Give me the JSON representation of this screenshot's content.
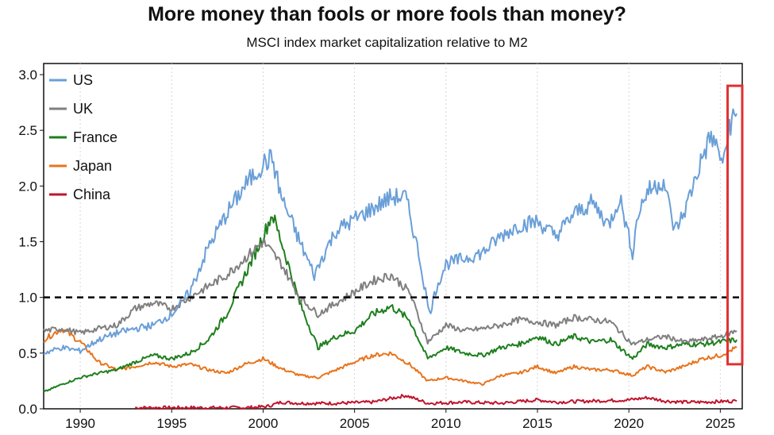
{
  "title": "More money than fools or more fools than money?",
  "subtitle": "MSCI index market capitalization relative to M2",
  "colors": {
    "US": "#6a9fd8",
    "UK": "#7f7f7f",
    "France": "#1e7f1e",
    "Japan": "#e8741c",
    "China": "#c0142c",
    "reference": "#000000",
    "highlight": "#e03030"
  },
  "chart_data": {
    "type": "line",
    "title": "More money than fools or more fools than money?",
    "subtitle": "MSCI index market capitalization relative to M2",
    "xlabel": "",
    "ylabel": "",
    "xlim": [
      1988,
      2026.2
    ],
    "ylim": [
      0,
      3.1
    ],
    "x_ticks": [
      "1990",
      "1995",
      "2000",
      "2005",
      "2010",
      "2015",
      "2020",
      "2025"
    ],
    "y_ticks": [
      "0.0",
      "0.5",
      "1.0",
      "1.5",
      "2.0",
      "2.5",
      "3.0"
    ],
    "grid": "vertical dotted",
    "legend": "top-left",
    "reference_line": {
      "y": 1.0,
      "style": "dashed"
    },
    "highlight_box": {
      "x": [
        2025.4,
        2026.2
      ],
      "y": [
        0.4,
        2.9
      ]
    },
    "series": [
      {
        "name": "US",
        "points": [
          [
            1988,
            0.5
          ],
          [
            1989,
            0.55
          ],
          [
            1990,
            0.52
          ],
          [
            1991,
            0.62
          ],
          [
            1992,
            0.68
          ],
          [
            1993,
            0.72
          ],
          [
            1994,
            0.75
          ],
          [
            1995,
            0.85
          ],
          [
            1996,
            1.05
          ],
          [
            1997,
            1.45
          ],
          [
            1998,
            1.75
          ],
          [
            1999,
            2.0
          ],
          [
            2000,
            2.2
          ],
          [
            2000.5,
            2.25
          ],
          [
            2001,
            1.9
          ],
          [
            2002,
            1.5
          ],
          [
            2002.8,
            1.2
          ],
          [
            2003.5,
            1.45
          ],
          [
            2004,
            1.6
          ],
          [
            2005,
            1.7
          ],
          [
            2006,
            1.8
          ],
          [
            2007,
            1.9
          ],
          [
            2007.8,
            1.9
          ],
          [
            2008.5,
            1.4
          ],
          [
            2009.1,
            0.85
          ],
          [
            2009.5,
            1.1
          ],
          [
            2010,
            1.3
          ],
          [
            2011,
            1.35
          ],
          [
            2012,
            1.4
          ],
          [
            2013,
            1.55
          ],
          [
            2014,
            1.65
          ],
          [
            2015,
            1.68
          ],
          [
            2016,
            1.55
          ],
          [
            2017,
            1.75
          ],
          [
            2018,
            1.85
          ],
          [
            2018.9,
            1.65
          ],
          [
            2019.5,
            1.9
          ],
          [
            2020.2,
            1.4
          ],
          [
            2020.5,
            1.75
          ],
          [
            2021,
            1.95
          ],
          [
            2021.9,
            2.05
          ],
          [
            2022.5,
            1.6
          ],
          [
            2023,
            1.75
          ],
          [
            2024,
            2.25
          ],
          [
            2024.5,
            2.45
          ],
          [
            2025.2,
            2.2
          ],
          [
            2025.5,
            2.55
          ],
          [
            2025.9,
            2.65
          ]
        ]
      },
      {
        "name": "UK",
        "points": [
          [
            1988,
            0.7
          ],
          [
            1989,
            0.72
          ],
          [
            1990,
            0.68
          ],
          [
            1991,
            0.72
          ],
          [
            1992,
            0.75
          ],
          [
            1993,
            0.9
          ],
          [
            1994,
            0.95
          ],
          [
            1995,
            0.9
          ],
          [
            1996,
            1.0
          ],
          [
            1997,
            1.1
          ],
          [
            1998,
            1.2
          ],
          [
            1999,
            1.35
          ],
          [
            2000,
            1.5
          ],
          [
            2001,
            1.3
          ],
          [
            2002,
            1.0
          ],
          [
            2003,
            0.85
          ],
          [
            2004,
            0.95
          ],
          [
            2005,
            1.05
          ],
          [
            2006,
            1.15
          ],
          [
            2007,
            1.2
          ],
          [
            2008,
            1.05
          ],
          [
            2009,
            0.6
          ],
          [
            2010,
            0.75
          ],
          [
            2011,
            0.7
          ],
          [
            2012,
            0.72
          ],
          [
            2013,
            0.75
          ],
          [
            2014,
            0.8
          ],
          [
            2015,
            0.78
          ],
          [
            2016,
            0.75
          ],
          [
            2017,
            0.82
          ],
          [
            2018,
            0.8
          ],
          [
            2019,
            0.78
          ],
          [
            2020.2,
            0.58
          ],
          [
            2021,
            0.62
          ],
          [
            2022,
            0.65
          ],
          [
            2023,
            0.6
          ],
          [
            2024,
            0.62
          ],
          [
            2025,
            0.65
          ],
          [
            2025.9,
            0.7
          ]
        ]
      },
      {
        "name": "France",
        "points": [
          [
            1988,
            0.15
          ],
          [
            1989,
            0.22
          ],
          [
            1990,
            0.28
          ],
          [
            1991,
            0.32
          ],
          [
            1992,
            0.35
          ],
          [
            1993,
            0.42
          ],
          [
            1994,
            0.48
          ],
          [
            1995,
            0.45
          ],
          [
            1996,
            0.5
          ],
          [
            1997,
            0.62
          ],
          [
            1998,
            0.85
          ],
          [
            1999,
            1.2
          ],
          [
            2000,
            1.55
          ],
          [
            2000.5,
            1.75
          ],
          [
            2001,
            1.5
          ],
          [
            2002,
            0.95
          ],
          [
            2003,
            0.55
          ],
          [
            2004,
            0.65
          ],
          [
            2005,
            0.7
          ],
          [
            2006,
            0.85
          ],
          [
            2007,
            0.92
          ],
          [
            2008,
            0.8
          ],
          [
            2009,
            0.45
          ],
          [
            2010,
            0.55
          ],
          [
            2011,
            0.5
          ],
          [
            2012,
            0.48
          ],
          [
            2013,
            0.55
          ],
          [
            2014,
            0.58
          ],
          [
            2015,
            0.65
          ],
          [
            2016,
            0.58
          ],
          [
            2017,
            0.65
          ],
          [
            2018,
            0.6
          ],
          [
            2019,
            0.62
          ],
          [
            2020.2,
            0.45
          ],
          [
            2021,
            0.58
          ],
          [
            2022,
            0.55
          ],
          [
            2023,
            0.58
          ],
          [
            2024,
            0.58
          ],
          [
            2025,
            0.6
          ],
          [
            2025.9,
            0.62
          ]
        ]
      },
      {
        "name": "Japan",
        "points": [
          [
            1988,
            0.62
          ],
          [
            1989,
            0.72
          ],
          [
            1990,
            0.6
          ],
          [
            1991,
            0.42
          ],
          [
            1992,
            0.35
          ],
          [
            1993,
            0.38
          ],
          [
            1994,
            0.42
          ],
          [
            1995,
            0.38
          ],
          [
            1996,
            0.4
          ],
          [
            1997,
            0.35
          ],
          [
            1998,
            0.32
          ],
          [
            1999,
            0.4
          ],
          [
            2000,
            0.45
          ],
          [
            2001,
            0.36
          ],
          [
            2002,
            0.3
          ],
          [
            2003,
            0.28
          ],
          [
            2004,
            0.35
          ],
          [
            2005,
            0.42
          ],
          [
            2006,
            0.48
          ],
          [
            2007,
            0.5
          ],
          [
            2008,
            0.4
          ],
          [
            2009,
            0.25
          ],
          [
            2010,
            0.28
          ],
          [
            2011,
            0.25
          ],
          [
            2012,
            0.22
          ],
          [
            2013,
            0.3
          ],
          [
            2014,
            0.32
          ],
          [
            2015,
            0.38
          ],
          [
            2016,
            0.32
          ],
          [
            2017,
            0.38
          ],
          [
            2018,
            0.35
          ],
          [
            2019,
            0.35
          ],
          [
            2020.2,
            0.3
          ],
          [
            2021,
            0.38
          ],
          [
            2022,
            0.33
          ],
          [
            2023,
            0.38
          ],
          [
            2024,
            0.45
          ],
          [
            2025,
            0.48
          ],
          [
            2025.9,
            0.55
          ]
        ]
      },
      {
        "name": "China",
        "points": [
          [
            1993,
            0.01
          ],
          [
            1996,
            0.01
          ],
          [
            1999,
            0.01
          ],
          [
            2000.2,
            0.02
          ],
          [
            2001,
            0.06
          ],
          [
            2002,
            0.05
          ],
          [
            2004,
            0.05
          ],
          [
            2006,
            0.06
          ],
          [
            2007.8,
            0.12
          ],
          [
            2008.5,
            0.08
          ],
          [
            2009,
            0.05
          ],
          [
            2011,
            0.06
          ],
          [
            2013,
            0.05
          ],
          [
            2015,
            0.08
          ],
          [
            2016,
            0.06
          ],
          [
            2018,
            0.07
          ],
          [
            2020,
            0.08
          ],
          [
            2021,
            0.1
          ],
          [
            2022,
            0.07
          ],
          [
            2023,
            0.06
          ],
          [
            2024,
            0.06
          ],
          [
            2025.9,
            0.07
          ]
        ]
      }
    ]
  }
}
